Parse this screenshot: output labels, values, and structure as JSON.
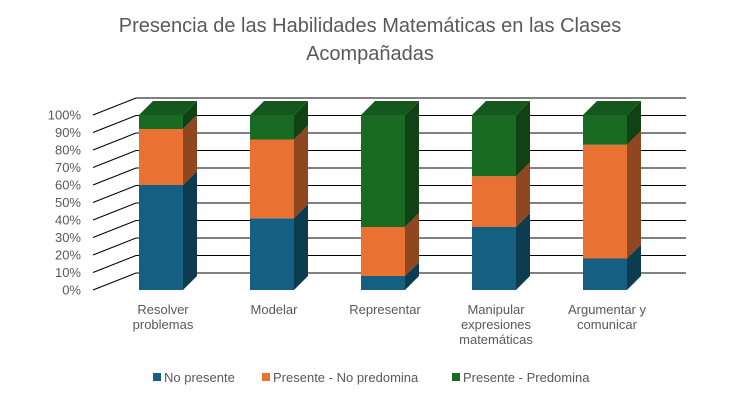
{
  "chart_data": {
    "type": "bar",
    "stacked": true,
    "three_d": true,
    "title_lines": [
      "Presencia de las Habilidades Matemáticas en las Clases",
      "Acompañadas"
    ],
    "categories": [
      [
        "Resolver",
        "problemas"
      ],
      [
        "Modelar"
      ],
      [
        "Representar"
      ],
      [
        "Manipular",
        "expresiones",
        "matemáticas"
      ],
      [
        "Argumentar y",
        "comunicar"
      ]
    ],
    "series": [
      {
        "name": "No presente",
        "color": "#156082",
        "values": [
          60,
          41,
          8,
          36,
          18
        ]
      },
      {
        "name": "Presente - No predomina",
        "color": "#E97132",
        "values": [
          32,
          45,
          28,
          29,
          65
        ]
      },
      {
        "name": "Presente - Predomina",
        "color": "#196B24",
        "values": [
          8,
          14,
          64,
          35,
          17
        ]
      }
    ],
    "y_ticks": [
      "0%",
      "10%",
      "20%",
      "30%",
      "40%",
      "50%",
      "60%",
      "70%",
      "80%",
      "90%",
      "100%"
    ],
    "ylim": [
      0,
      100
    ],
    "grid": true,
    "legend_position": "bottom"
  }
}
